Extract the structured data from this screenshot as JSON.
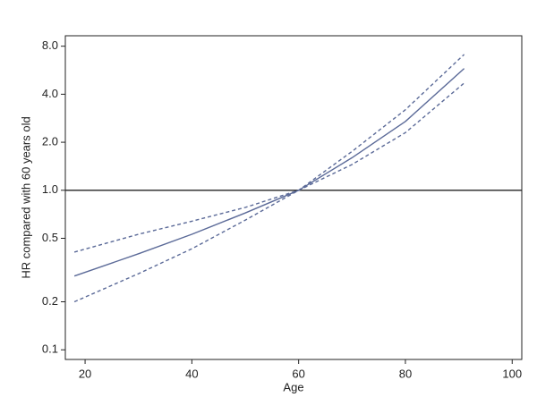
{
  "chart_data": {
    "type": "line",
    "x_label": "Age",
    "y_label": "HR compared with 60 years old",
    "x": [
      18,
      30,
      40,
      50,
      60,
      70,
      80,
      91
    ],
    "series": [
      {
        "color": "#5b6a98",
        "dashed": false,
        "values": [
          0.29,
          0.4,
          0.53,
          0.72,
          1.0,
          1.6,
          2.7,
          5.8
        ]
      },
      {
        "color": "#5b6a98",
        "dashed": true,
        "values": [
          0.41,
          0.53,
          0.64,
          0.78,
          1.0,
          1.75,
          3.2,
          7.1
        ]
      },
      {
        "color": "#5b6a98",
        "dashed": true,
        "values": [
          0.2,
          0.3,
          0.43,
          0.65,
          1.0,
          1.45,
          2.3,
          4.7
        ]
      }
    ],
    "reference_line": 1,
    "log_y": true,
    "xlim": [
      16.3,
      101.8
    ],
    "ylim": [
      0.087,
      9.3
    ],
    "xticks": [
      20,
      40,
      60,
      80,
      100
    ],
    "yticks": [
      0.1,
      0.2,
      0.5,
      {
        "value": 1,
        "label": "1.0"
      },
      {
        "value": 2,
        "label": "2.0"
      },
      {
        "value": 4,
        "label": "4.0"
      },
      {
        "value": 8,
        "label": "8.0"
      }
    ]
  }
}
